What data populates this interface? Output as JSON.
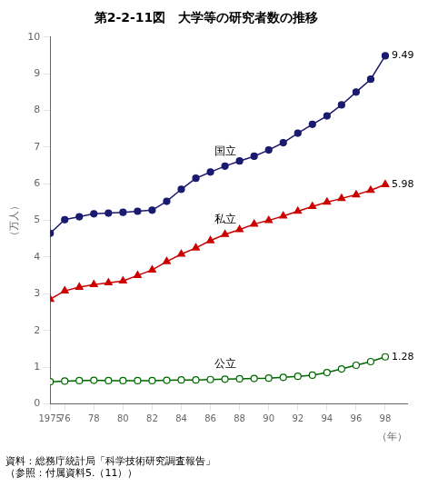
{
  "chart_data": {
    "type": "line",
    "title": "第2-2-11図　大学等の研究者数の推移",
    "source": "資料：総務庁統計局「科学技術研究調査報告」\n（参照：付属資料5.（11））",
    "y_label": "（万人）",
    "x_label": "（年）",
    "xlim": [
      1975,
      1999.5
    ],
    "ylim": [
      0,
      10
    ],
    "yticks": [
      0,
      1,
      2,
      3,
      4,
      5,
      6,
      7,
      8,
      9,
      10
    ],
    "xticks": [
      1975,
      {
        "value": 1976,
        "label": "76"
      },
      {
        "value": 1978,
        "label": "78"
      },
      {
        "value": 1980,
        "label": "80"
      },
      {
        "value": 1982,
        "label": "82"
      },
      {
        "value": 1984,
        "label": "84"
      },
      {
        "value": 1986,
        "label": "86"
      },
      {
        "value": 1988,
        "label": "88"
      },
      {
        "value": 1990,
        "label": "90"
      },
      {
        "value": 1992,
        "label": "92"
      },
      {
        "value": 1994,
        "label": "94"
      },
      {
        "value": 1996,
        "label": "96"
      },
      {
        "value": 1998,
        "label": "98"
      }
    ],
    "grid": false,
    "x": [
      1975,
      1976,
      1977,
      1978,
      1979,
      1980,
      1981,
      1982,
      1983,
      1984,
      1985,
      1986,
      1987,
      1988,
      1989,
      1990,
      1991,
      1992,
      1993,
      1994,
      1995,
      1996,
      1997,
      1998
    ],
    "series": [
      {
        "name": "国立",
        "color": "#1a1a6e",
        "marker": "circle",
        "values": [
          4.65,
          5.02,
          5.1,
          5.18,
          5.2,
          5.22,
          5.25,
          5.28,
          5.52,
          5.85,
          6.15,
          6.32,
          6.48,
          6.62,
          6.75,
          6.92,
          7.12,
          7.38,
          7.62,
          7.85,
          8.15,
          8.5,
          8.85,
          9.49
        ]
      },
      {
        "name": "私立",
        "color": "#cc0000",
        "marker": "triangle",
        "values": [
          2.85,
          3.08,
          3.18,
          3.25,
          3.3,
          3.35,
          3.5,
          3.65,
          3.88,
          4.08,
          4.25,
          4.45,
          4.62,
          4.75,
          4.9,
          5.0,
          5.12,
          5.25,
          5.38,
          5.5,
          5.6,
          5.7,
          5.82,
          5.98
        ]
      },
      {
        "name": "公立",
        "color": "#006600",
        "marker": "open_circle",
        "values": [
          0.6,
          0.62,
          0.63,
          0.64,
          0.63,
          0.63,
          0.63,
          0.63,
          0.64,
          0.65,
          0.65,
          0.66,
          0.67,
          0.68,
          0.69,
          0.7,
          0.72,
          0.75,
          0.78,
          0.85,
          0.95,
          1.05,
          1.15,
          1.28
        ]
      }
    ],
    "annotations": [
      {
        "text": "9.49",
        "x": 1998,
        "y": 9.49
      },
      {
        "text": "5.98",
        "x": 1998,
        "y": 5.98
      },
      {
        "text": "1.28",
        "x": 1998,
        "y": 1.28
      }
    ]
  }
}
